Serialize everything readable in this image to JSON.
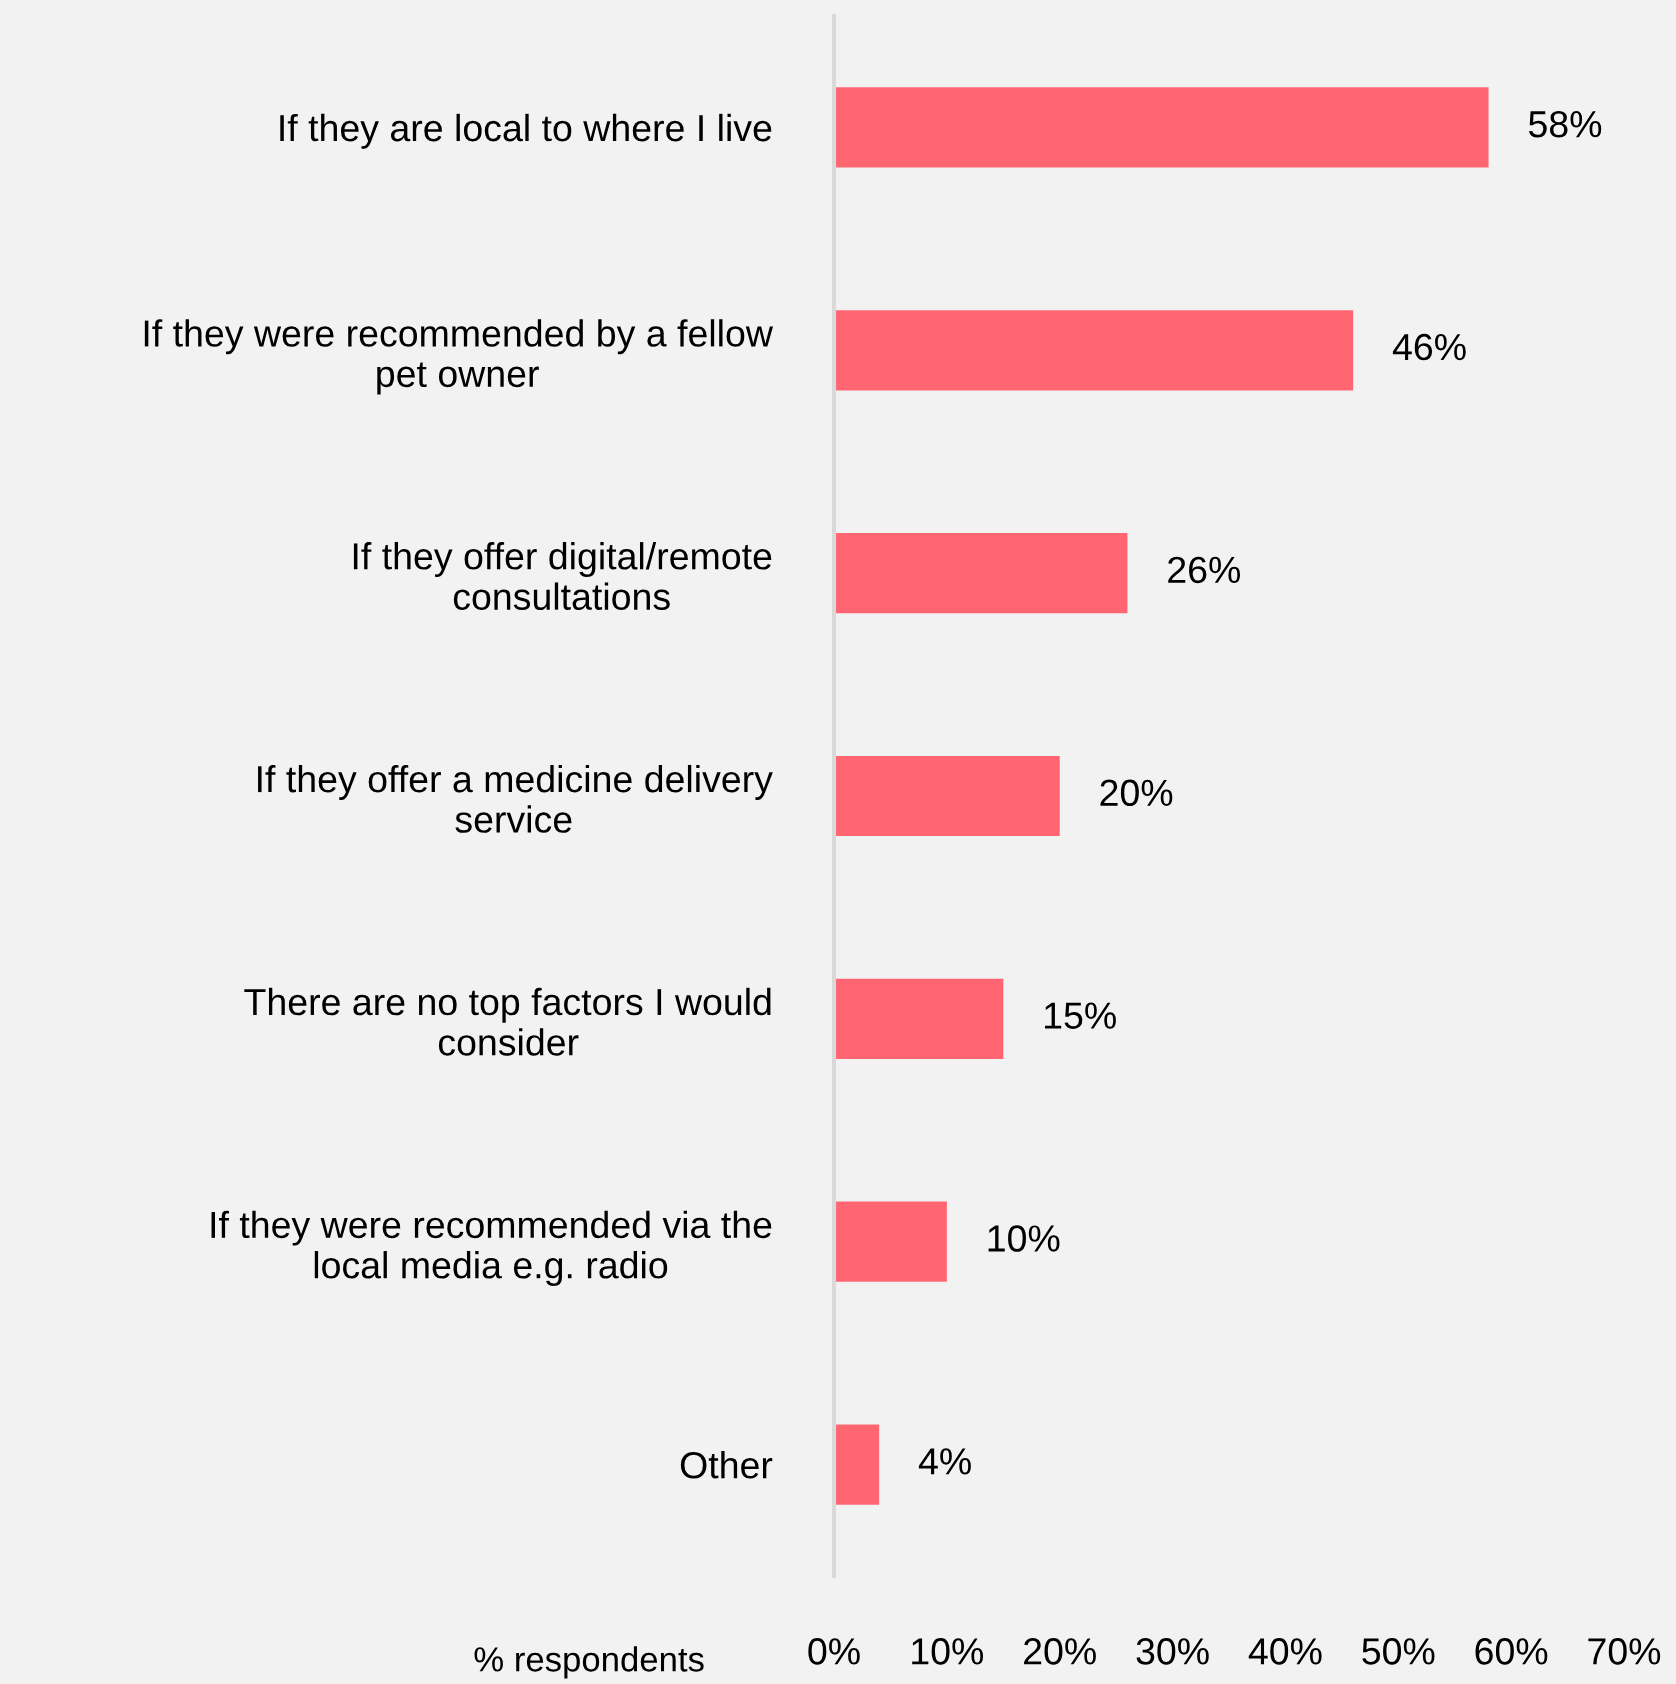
{
  "chart_data": {
    "type": "bar",
    "orientation": "horizontal",
    "xlabel": "% respondents",
    "categories": [
      "If they are local to where I live",
      "If they were recommended by a fellow\npet owner",
      "If they offer digital/remote\nconsultations",
      "If they offer a medicine delivery\nservice",
      "There are no top factors I would\nconsider",
      "If they were recommended via the\nlocal media e.g. radio",
      "Other"
    ],
    "values": [
      58,
      46,
      26,
      20,
      15,
      10,
      4
    ],
    "value_labels": [
      "58%",
      "46%",
      "26%",
      "20%",
      "15%",
      "10%",
      "4%"
    ],
    "color": "#ff6672",
    "xlim": [
      0,
      70
    ],
    "xticks": [
      {
        "value": 0,
        "label": "0%"
      },
      {
        "value": 10,
        "label": "10%"
      },
      {
        "value": 20,
        "label": "20%"
      },
      {
        "value": 30,
        "label": "30%"
      },
      {
        "value": 40,
        "label": "40%"
      },
      {
        "value": 50,
        "label": "50%"
      },
      {
        "value": 60,
        "label": "60%"
      },
      {
        "value": 70,
        "label": "70%"
      }
    ],
    "grid": false,
    "legend": false
  }
}
